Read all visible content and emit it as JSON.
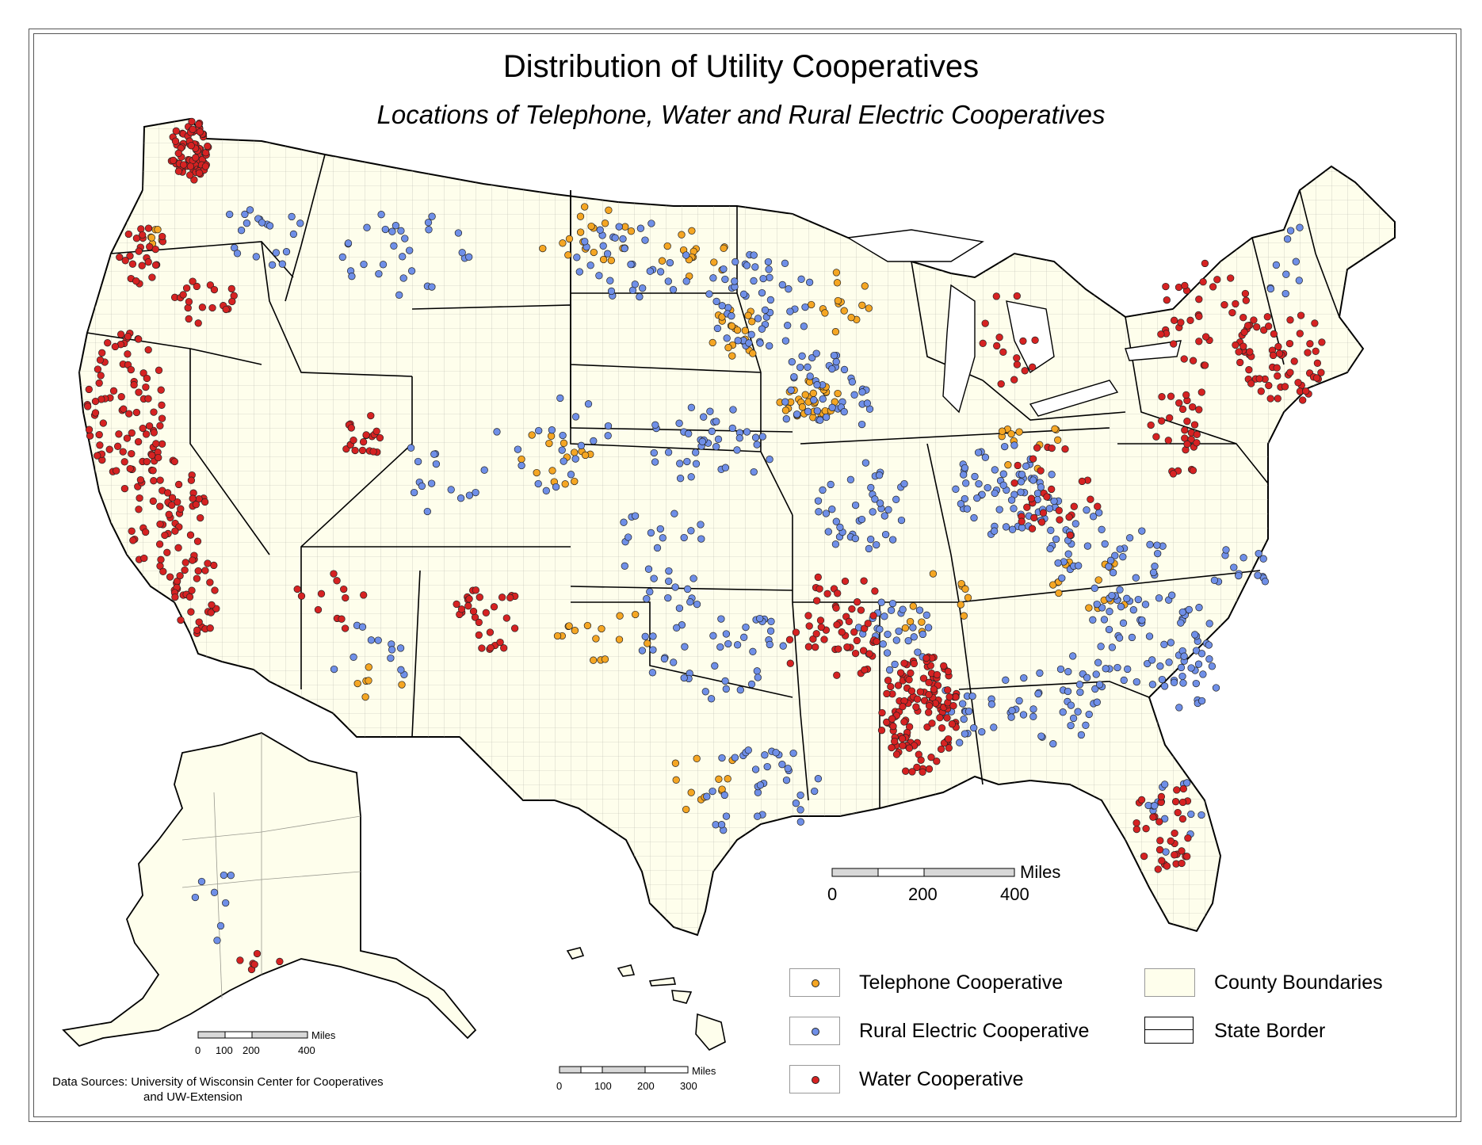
{
  "title": "Distribution of Utility Cooperatives",
  "subtitle": "Locations of Telephone, Water and Rural Electric Cooperatives",
  "colors": {
    "telephone": "#f5a623",
    "rural_electric": "#6f8fe8",
    "water": "#d62222",
    "land": "#fefeec",
    "border": "#000000",
    "county": "#8a8a8a"
  },
  "legend": {
    "telephone": "Telephone Cooperative",
    "rural_electric": "Rural Electric Cooperative",
    "water": "Water Cooperative",
    "county": "County Boundaries",
    "state": "State Border"
  },
  "scale_main": {
    "unit": "Miles",
    "ticks": [
      "0",
      "200",
      "400"
    ]
  },
  "scale_alaska": {
    "unit": "Miles",
    "ticks": [
      "0",
      "100",
      "200",
      "400"
    ]
  },
  "scale_hawaii": {
    "unit": "Miles",
    "ticks": [
      "0",
      "100",
      "200",
      "300"
    ]
  },
  "source": {
    "line1": "Data Sources: University of Wisconsin Center for Cooperatives",
    "line2": "and UW-Extension"
  }
}
